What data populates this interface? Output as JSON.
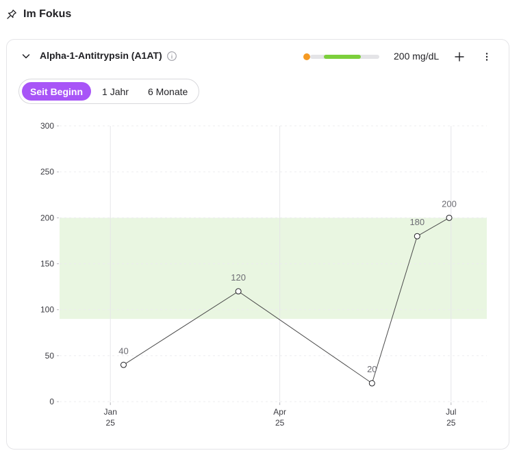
{
  "section": {
    "title": "Im Fokus",
    "icon": "pin-icon"
  },
  "card": {
    "marker_name": "Alpha-1-Antitrypsin (A1AT)",
    "info_icon": "info-icon",
    "range_indicator": {
      "value_position": 0.0,
      "colors": {
        "dot": "#f59a23",
        "normal": "#7ccf3c",
        "track": "#e4e4e7"
      }
    },
    "value_readout": "200 mg/dL",
    "add_icon": "plus-icon",
    "menu_icon": "more-vertical-icon",
    "collapse_icon": "chevron-down-icon"
  },
  "tabs": [
    {
      "label": "Seit Beginn",
      "active": true
    },
    {
      "label": "1 Jahr",
      "active": false
    },
    {
      "label": "6 Monate",
      "active": false
    }
  ],
  "colors": {
    "accent": "#a855f7",
    "normal_band": "#e9f6e1",
    "line": "#4a4a4a"
  },
  "chart_data": {
    "type": "line",
    "ylim": [
      0,
      300
    ],
    "yticks": [
      "300",
      "250",
      "200",
      "150",
      "100",
      "50",
      "0"
    ],
    "xticks": [
      {
        "date": "2025-01-01",
        "month": "Jan",
        "year": "25"
      },
      {
        "date": "2025-04-01",
        "month": "Apr",
        "year": "25"
      },
      {
        "date": "2025-07-01",
        "month": "Jul",
        "year": "25"
      }
    ],
    "xlim": [
      "2024-12-05",
      "2025-07-20"
    ],
    "reference_range": [
      90,
      200
    ],
    "series": [
      {
        "points": [
          {
            "date": "2025-01-08",
            "value": 40,
            "label": "40"
          },
          {
            "date": "2025-03-10",
            "value": 120,
            "label": "120"
          },
          {
            "date": "2025-05-20",
            "value": 20,
            "label": "20"
          },
          {
            "date": "2025-06-13",
            "value": 180,
            "label": "180"
          },
          {
            "date": "2025-06-30",
            "value": 200,
            "label": "200"
          }
        ]
      }
    ],
    "grid": true
  }
}
